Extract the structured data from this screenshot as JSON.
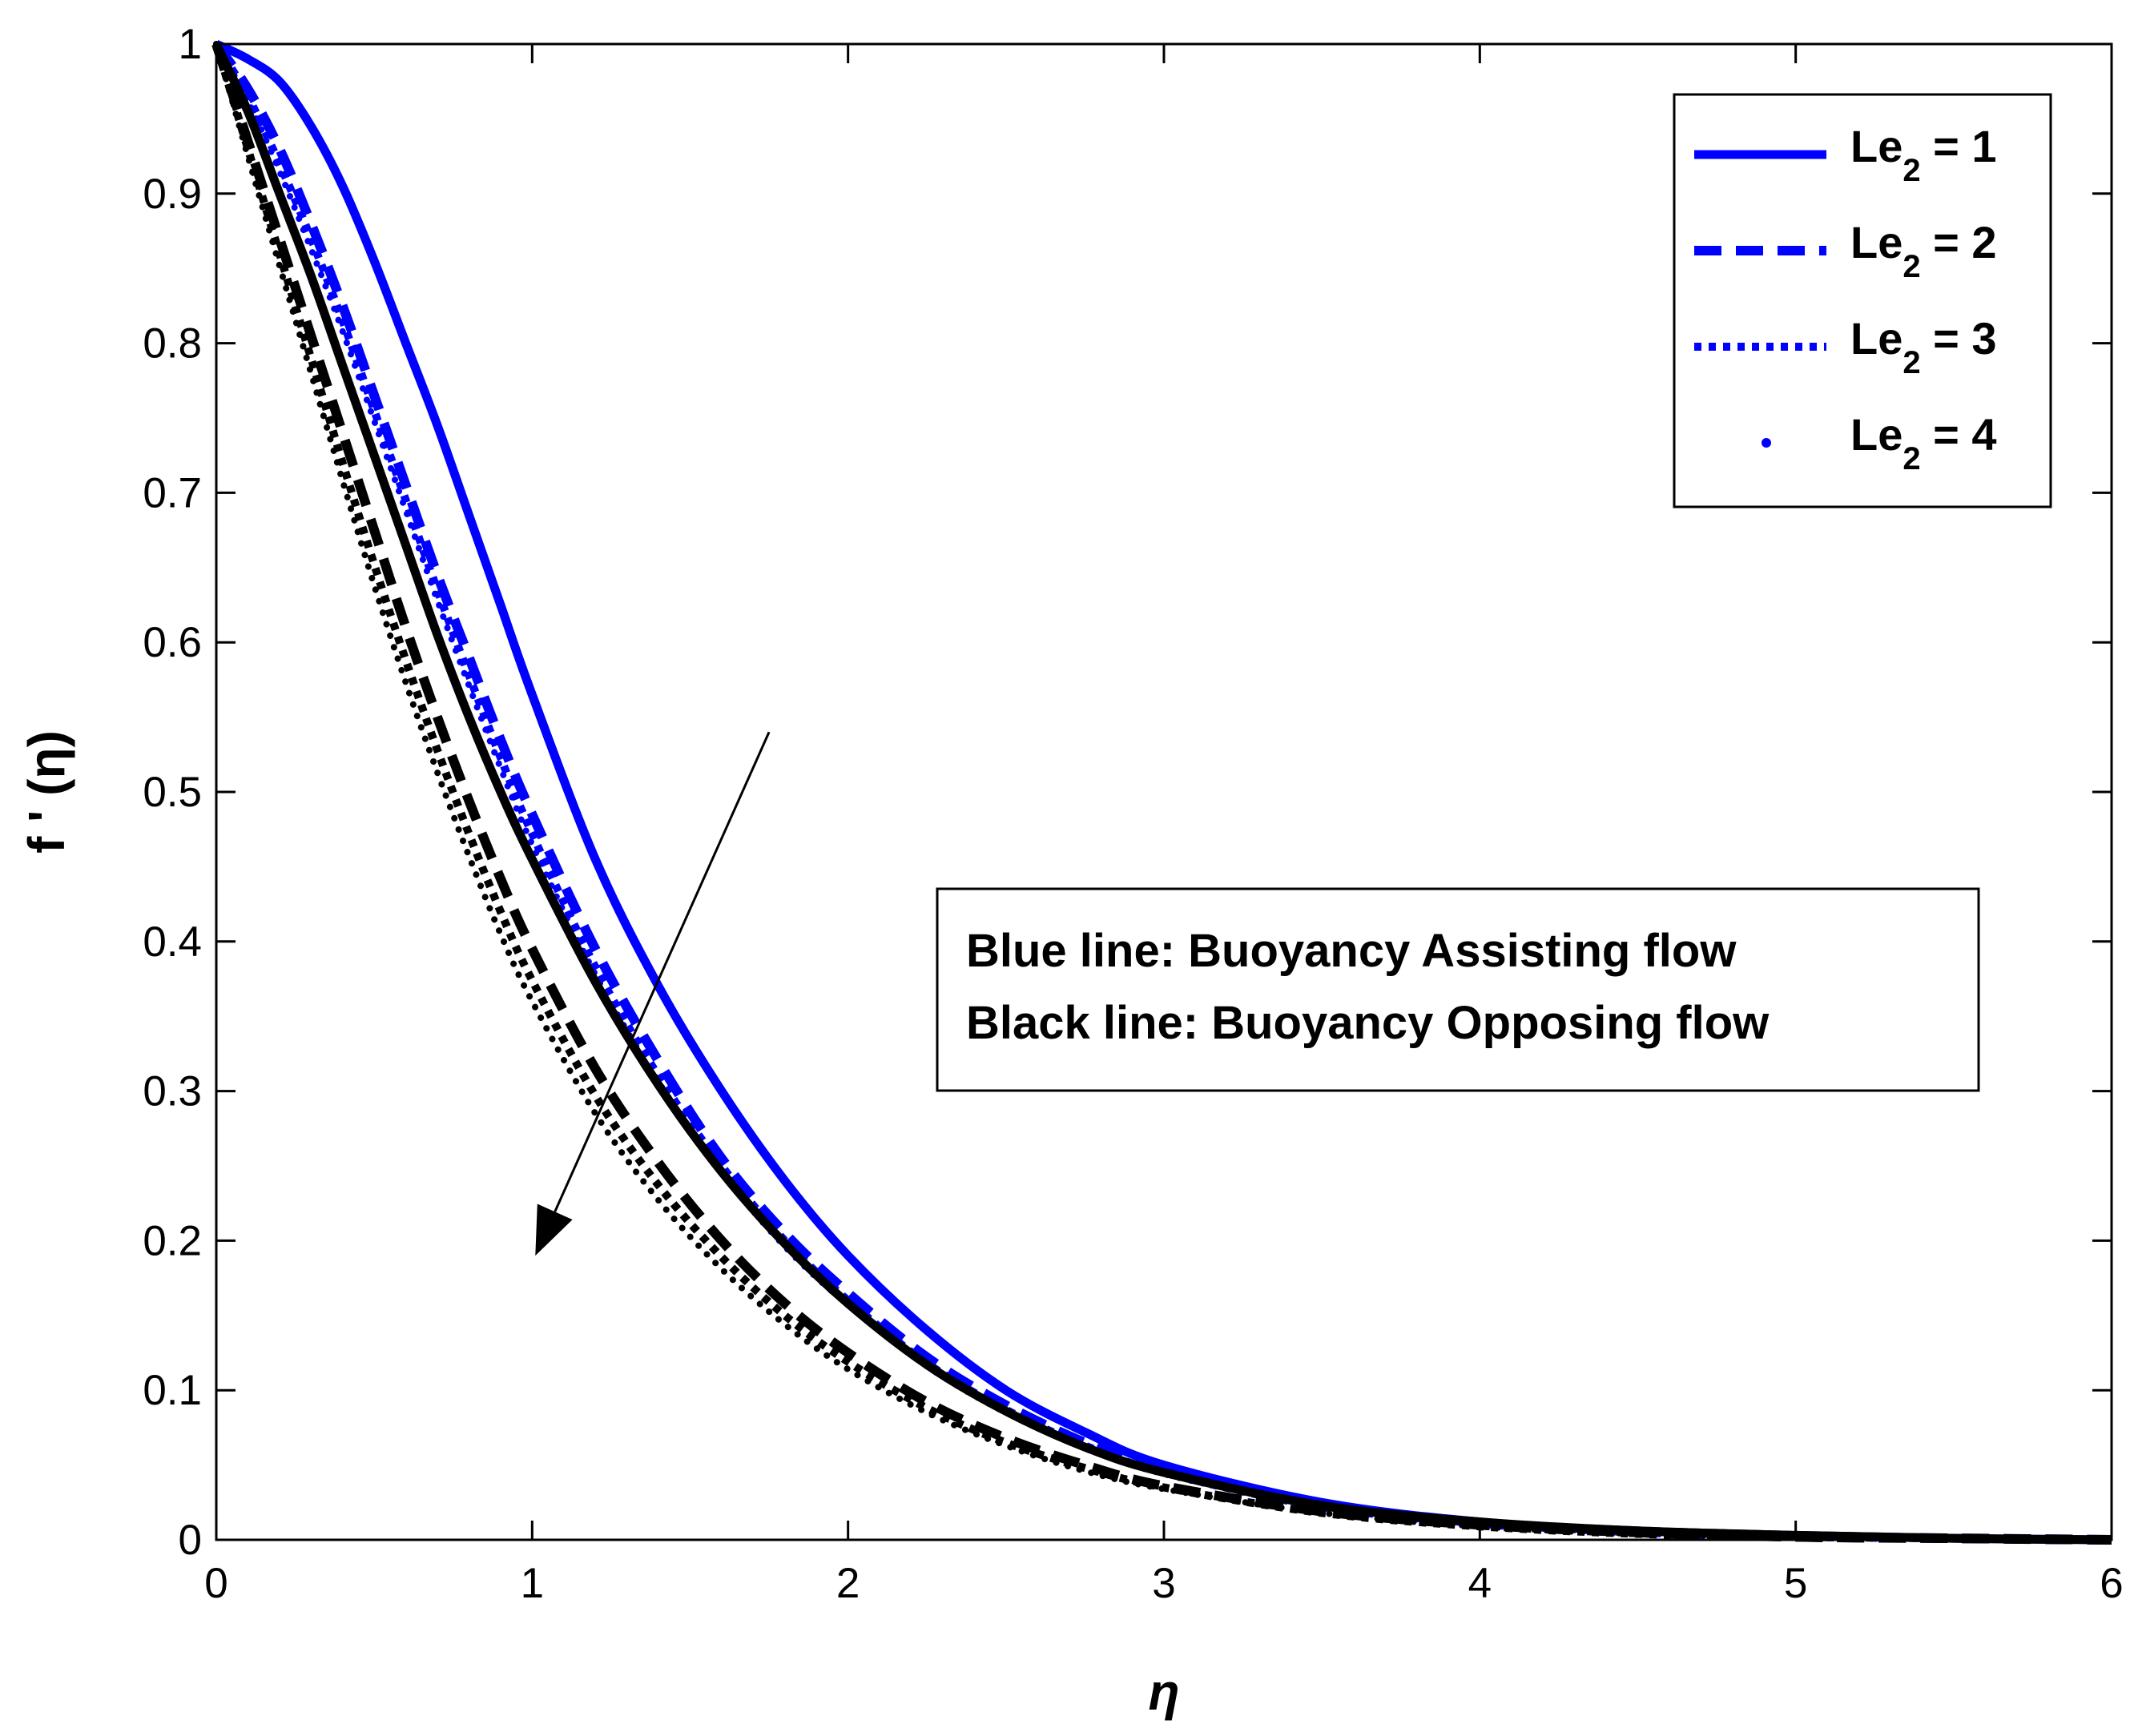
{
  "chart_data": {
    "type": "line",
    "xlabel": "η",
    "ylabel": "f ' (η)",
    "xlim": [
      0,
      6
    ],
    "ylim": [
      0,
      1
    ],
    "x_ticks": [
      "0",
      "1",
      "2",
      "3",
      "4",
      "5",
      "6"
    ],
    "y_ticks": [
      "0",
      "0.1",
      "0.2",
      "0.3",
      "0.4",
      "0.5",
      "0.6",
      "0.7",
      "0.8",
      "0.9",
      "1"
    ],
    "grid": false,
    "legend_position": "top-right",
    "legend": [
      {
        "prefix": "Le",
        "sub": "2",
        "suffix": " = 1",
        "style": "solid"
      },
      {
        "prefix": "Le",
        "sub": "2",
        "suffix": " = 2",
        "style": "dashed"
      },
      {
        "prefix": "Le",
        "sub": "2",
        "suffix": " = 3",
        "style": "dotted"
      },
      {
        "prefix": "Le",
        "sub": "2",
        "suffix": " = 4",
        "style": "points"
      }
    ],
    "annotation_lines": [
      "Blue line: Buoyancy Assisting flow",
      "Black line: Buoyancy Opposing flow"
    ],
    "arrow": {
      "from": [
        1.75,
        0.54
      ],
      "to": [
        1.01,
        0.19
      ],
      "meaning": "increasing Le2"
    },
    "x": [
      0,
      0.1,
      0.2,
      0.3,
      0.4,
      0.5,
      0.6,
      0.7,
      0.8,
      0.9,
      1.0,
      1.2,
      1.4,
      1.6,
      1.8,
      2.0,
      2.25,
      2.5,
      2.75,
      3.0,
      3.5,
      4.0,
      4.5,
      5.0,
      5.5,
      6.0
    ],
    "series": [
      {
        "group": "assisting",
        "color": "#0000ff",
        "style": "solid",
        "le2": 1,
        "y": [
          1.0,
          0.99,
          0.975,
          0.945,
          0.905,
          0.855,
          0.8,
          0.745,
          0.685,
          0.625,
          0.565,
          0.455,
          0.37,
          0.3,
          0.24,
          0.19,
          0.14,
          0.1,
          0.072,
          0.05,
          0.025,
          0.012,
          0.006,
          0.003,
          0.001,
          0.0
        ]
      },
      {
        "group": "assisting",
        "color": "#0000ff",
        "style": "dashed",
        "le2": 2,
        "y": [
          1.0,
          0.97,
          0.93,
          0.88,
          0.825,
          0.765,
          0.705,
          0.645,
          0.59,
          0.535,
          0.485,
          0.395,
          0.32,
          0.255,
          0.205,
          0.165,
          0.122,
          0.09,
          0.065,
          0.046,
          0.023,
          0.011,
          0.005,
          0.002,
          0.001,
          0.0
        ]
      },
      {
        "group": "assisting",
        "color": "#0000ff",
        "style": "dotted",
        "le2": 3,
        "y": [
          1.0,
          0.965,
          0.92,
          0.87,
          0.815,
          0.755,
          0.695,
          0.635,
          0.578,
          0.523,
          0.472,
          0.383,
          0.31,
          0.25,
          0.2,
          0.16,
          0.118,
          0.087,
          0.063,
          0.045,
          0.022,
          0.011,
          0.005,
          0.002,
          0.001,
          0.0
        ]
      },
      {
        "group": "assisting",
        "color": "#0000ff",
        "style": "points",
        "le2": 4,
        "y": [
          1.0,
          0.962,
          0.915,
          0.863,
          0.808,
          0.748,
          0.688,
          0.628,
          0.571,
          0.516,
          0.465,
          0.378,
          0.306,
          0.246,
          0.196,
          0.157,
          0.116,
          0.085,
          0.062,
          0.044,
          0.022,
          0.01,
          0.005,
          0.002,
          0.001,
          0.0
        ]
      },
      {
        "group": "opposing",
        "color": "#000000",
        "style": "solid",
        "le2": 1,
        "y": [
          1.0,
          0.955,
          0.9,
          0.845,
          0.785,
          0.725,
          0.665,
          0.605,
          0.55,
          0.5,
          0.455,
          0.373,
          0.304,
          0.246,
          0.198,
          0.158,
          0.117,
          0.086,
          0.062,
          0.045,
          0.023,
          0.012,
          0.006,
          0.003,
          0.001,
          0.0
        ]
      },
      {
        "group": "opposing",
        "color": "#000000",
        "style": "dashed",
        "le2": 2,
        "y": [
          1.0,
          0.935,
          0.87,
          0.805,
          0.74,
          0.675,
          0.61,
          0.55,
          0.494,
          0.442,
          0.395,
          0.315,
          0.252,
          0.2,
          0.158,
          0.125,
          0.092,
          0.068,
          0.05,
          0.036,
          0.019,
          0.01,
          0.005,
          0.002,
          0.001,
          0.0
        ]
      },
      {
        "group": "opposing",
        "color": "#000000",
        "style": "dotted",
        "le2": 3,
        "y": [
          1.0,
          0.93,
          0.86,
          0.79,
          0.72,
          0.652,
          0.588,
          0.528,
          0.472,
          0.42,
          0.374,
          0.297,
          0.237,
          0.189,
          0.15,
          0.119,
          0.088,
          0.065,
          0.048,
          0.035,
          0.018,
          0.009,
          0.004,
          0.002,
          0.001,
          0.0
        ]
      },
      {
        "group": "opposing",
        "color": "#000000",
        "style": "points",
        "le2": 4,
        "y": [
          1.0,
          0.925,
          0.852,
          0.78,
          0.708,
          0.638,
          0.573,
          0.513,
          0.457,
          0.405,
          0.36,
          0.285,
          0.227,
          0.181,
          0.144,
          0.114,
          0.085,
          0.063,
          0.046,
          0.034,
          0.018,
          0.009,
          0.004,
          0.002,
          0.001,
          0.0
        ]
      }
    ]
  }
}
